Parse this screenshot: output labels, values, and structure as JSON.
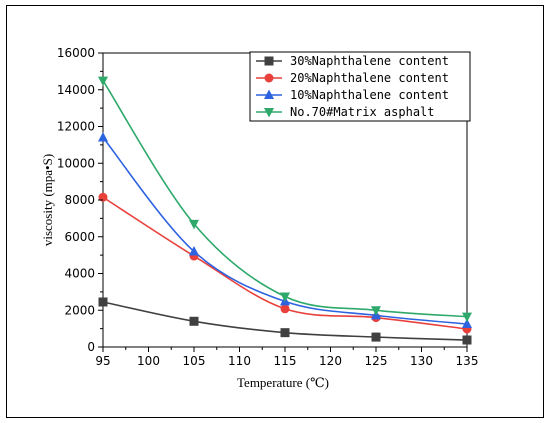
{
  "chart_data": {
    "type": "line",
    "title": "",
    "xlabel": "Temperature (℃)",
    "ylabel": "viscosity (mpa•S)",
    "xlim": [
      95,
      135
    ],
    "ylim": [
      0,
      16000
    ],
    "x_ticks": [
      "95",
      "100",
      "105",
      "110",
      "115",
      "120",
      "125",
      "130",
      "135"
    ],
    "y_ticks": [
      "0",
      "2000",
      "4000",
      "6000",
      "8000",
      "10000",
      "12000",
      "14000",
      "16000"
    ],
    "x": [
      95,
      105,
      115,
      125,
      135
    ],
    "grid": false,
    "legend_position": "top-right",
    "series": [
      {
        "name": "30%Naphthalene content",
        "color": "#404040",
        "marker": "square",
        "values": [
          2450,
          1400,
          780,
          540,
          380
        ]
      },
      {
        "name": "20%Naphthalene content",
        "color": "#e8413c",
        "marker": "circle",
        "values": [
          8150,
          4950,
          2080,
          1600,
          980
        ]
      },
      {
        "name": "10%Naphthalene content",
        "color": "#2d63e0",
        "marker": "triangle-up",
        "values": [
          11400,
          5200,
          2480,
          1720,
          1250
        ]
      },
      {
        "name": "No.70#Matrix asphalt",
        "color": "#2ea96b",
        "marker": "triangle-down",
        "values": [
          14500,
          6700,
          2750,
          2000,
          1650
        ]
      }
    ]
  }
}
